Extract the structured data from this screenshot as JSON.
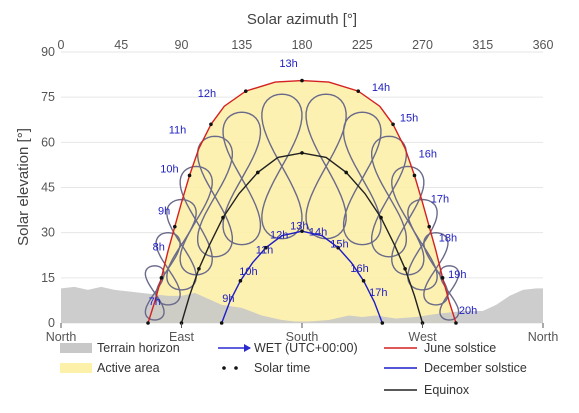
{
  "chart_data": {
    "type": "line",
    "x_top_label": "Solar azimuth [°]",
    "ylabel": "Solar elevation [°]",
    "xlim": [
      0,
      360
    ],
    "ylim": [
      0,
      90
    ],
    "x_ticks": [
      0,
      45,
      90,
      135,
      180,
      225,
      270,
      315,
      360
    ],
    "y_ticks": [
      0,
      15,
      30,
      45,
      60,
      75,
      90
    ],
    "x_bottom_ticks": [
      {
        "az": 0,
        "label": "North"
      },
      {
        "az": 90,
        "label": "East"
      },
      {
        "az": 180,
        "label": "South"
      },
      {
        "az": 270,
        "label": "West"
      },
      {
        "az": 360,
        "label": "North"
      }
    ],
    "grid": true,
    "colors": {
      "terrain": "#c8c8c8",
      "active": "#fdf0a8",
      "wet": "#2a2ad0",
      "june": "#d42020",
      "december": "#1c1cc8",
      "equinox": "#222222",
      "analemma": "#6a6a8a"
    },
    "terrain_horizon": [
      [
        0,
        11.5
      ],
      [
        10,
        12
      ],
      [
        20,
        11
      ],
      [
        30,
        12
      ],
      [
        40,
        11
      ],
      [
        50,
        10.5
      ],
      [
        60,
        10
      ],
      [
        70,
        9.5
      ],
      [
        80,
        9
      ],
      [
        90,
        9
      ],
      [
        100,
        10
      ],
      [
        110,
        8
      ],
      [
        120,
        6
      ],
      [
        135,
        5
      ],
      [
        150,
        2.5
      ],
      [
        165,
        1
      ],
      [
        175,
        0.5
      ],
      [
        185,
        0.5
      ],
      [
        200,
        1
      ],
      [
        215,
        2.5
      ],
      [
        225,
        2
      ],
      [
        235,
        2.5
      ],
      [
        250,
        1.5
      ],
      [
        265,
        2
      ],
      [
        280,
        3
      ],
      [
        290,
        3.5
      ],
      [
        300,
        4
      ],
      [
        315,
        4
      ],
      [
        325,
        6
      ],
      [
        335,
        9
      ],
      [
        345,
        11
      ],
      [
        355,
        11.5
      ],
      [
        360,
        11.5
      ]
    ],
    "series": [
      {
        "name": "June solstice",
        "points": [
          [
            65,
            0
          ],
          [
            70,
            7
          ],
          [
            75,
            15
          ],
          [
            80,
            24
          ],
          [
            85,
            32
          ],
          [
            90,
            40
          ],
          [
            96,
            49
          ],
          [
            103,
            58
          ],
          [
            112,
            66
          ],
          [
            122,
            72
          ],
          [
            138,
            77
          ],
          [
            160,
            80
          ],
          [
            180,
            80.5
          ],
          [
            200,
            80
          ],
          [
            222,
            77
          ],
          [
            238,
            72
          ],
          [
            248,
            66
          ],
          [
            257,
            58
          ],
          [
            264,
            49
          ],
          [
            270,
            40
          ],
          [
            275,
            32
          ],
          [
            280,
            24
          ],
          [
            285,
            15
          ],
          [
            290,
            7
          ],
          [
            295,
            0
          ]
        ]
      },
      {
        "name": "Equinox",
        "points": [
          [
            90,
            0
          ],
          [
            96,
            9
          ],
          [
            103,
            18
          ],
          [
            111,
            26
          ],
          [
            121,
            35
          ],
          [
            133,
            43
          ],
          [
            147,
            50
          ],
          [
            162,
            55
          ],
          [
            180,
            56.5
          ],
          [
            198,
            55
          ],
          [
            213,
            50
          ],
          [
            227,
            43
          ],
          [
            239,
            35
          ],
          [
            249,
            26
          ],
          [
            257,
            18
          ],
          [
            264,
            9
          ],
          [
            270,
            0
          ]
        ]
      },
      {
        "name": "December solstice",
        "points": [
          [
            120,
            0
          ],
          [
            126,
            7
          ],
          [
            134,
            14
          ],
          [
            143,
            20
          ],
          [
            153,
            25
          ],
          [
            165,
            29
          ],
          [
            180,
            30.5
          ],
          [
            195,
            29
          ],
          [
            207,
            25
          ],
          [
            217,
            20
          ],
          [
            226,
            14
          ],
          [
            234,
            7
          ],
          [
            240,
            0
          ]
        ]
      }
    ],
    "active_area": "between horizon and June solstice path",
    "hour_labels_wet": [
      {
        "label": "7h",
        "az": 70,
        "el": 6
      },
      {
        "label": "8h",
        "az": 73,
        "el": 24
      },
      {
        "label": "9h",
        "az": 77,
        "el": 36
      },
      {
        "label": "10h",
        "az": 81,
        "el": 50
      },
      {
        "label": "11h",
        "az": 87,
        "el": 63
      },
      {
        "label": "12h",
        "az": 109,
        "el": 75
      },
      {
        "label": "13h",
        "az": 170,
        "el": 85
      },
      {
        "label": "14h",
        "az": 239,
        "el": 77
      },
      {
        "label": "15h",
        "az": 260,
        "el": 67
      },
      {
        "label": "16h",
        "az": 274,
        "el": 55
      },
      {
        "label": "17h",
        "az": 283,
        "el": 40
      },
      {
        "label": "18h",
        "az": 289,
        "el": 27
      },
      {
        "label": "19h",
        "az": 296,
        "el": 15
      },
      {
        "label": "20h",
        "az": 304,
        "el": 3
      }
    ],
    "hour_labels_winter": [
      {
        "label": "9h",
        "az": 125,
        "el": 7
      },
      {
        "label": "10h",
        "az": 140,
        "el": 16
      },
      {
        "label": "11h",
        "az": 152,
        "el": 23
      },
      {
        "label": "12h",
        "az": 163,
        "el": 28
      },
      {
        "label": "13h",
        "az": 178,
        "el": 31
      },
      {
        "label": "14h",
        "az": 192,
        "el": 29
      },
      {
        "label": "15h",
        "az": 208,
        "el": 25
      },
      {
        "label": "16h",
        "az": 223,
        "el": 17
      },
      {
        "label": "17h",
        "az": 237,
        "el": 9
      }
    ],
    "analemma_loops": [
      {
        "label": "7h",
        "c": [
          70,
          10
        ],
        "w": 14,
        "h": 18
      },
      {
        "label": "8h",
        "c": [
          80,
          18
        ],
        "w": 18,
        "h": 24
      },
      {
        "label": "9h",
        "c": [
          90,
          26
        ],
        "w": 22,
        "h": 30
      },
      {
        "label": "10h",
        "c": [
          101,
          34
        ],
        "w": 24,
        "h": 36
      },
      {
        "label": "11h",
        "c": [
          115,
          42
        ],
        "w": 26,
        "h": 40
      },
      {
        "label": "12h",
        "c": [
          135,
          48
        ],
        "w": 28,
        "h": 44
      },
      {
        "label": "13h",
        "c": [
          165,
          52
        ],
        "w": 30,
        "h": 48
      },
      {
        "label": "14h",
        "c": [
          198,
          52
        ],
        "w": 30,
        "h": 48
      },
      {
        "label": "15h",
        "c": [
          225,
          48
        ],
        "w": 28,
        "h": 44
      },
      {
        "label": "16h",
        "c": [
          245,
          42
        ],
        "w": 26,
        "h": 40
      },
      {
        "label": "17h",
        "c": [
          259,
          34
        ],
        "w": 24,
        "h": 36
      },
      {
        "label": "18h",
        "c": [
          270,
          26
        ],
        "w": 22,
        "h": 30
      },
      {
        "label": "19h",
        "c": [
          280,
          18
        ],
        "w": 18,
        "h": 24
      },
      {
        "label": "20h",
        "c": [
          290,
          10
        ],
        "w": 14,
        "h": 18
      }
    ]
  },
  "legend": {
    "terrain": "Terrain horizon",
    "active": "Active area",
    "wet": "WET (UTC+00:00)",
    "solar_time": "Solar time",
    "june": "June solstice",
    "december": "December solstice",
    "equinox": "Equinox"
  }
}
